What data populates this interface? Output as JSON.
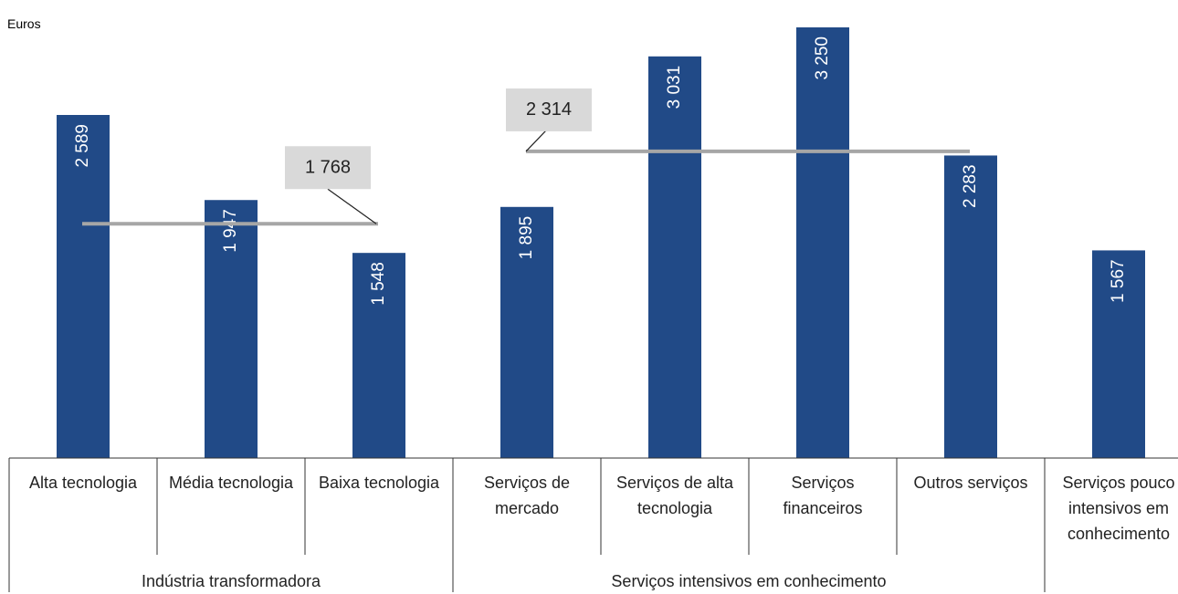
{
  "chart_data": {
    "type": "bar",
    "y_label": "Euros",
    "categories": [
      "Alta tecnologia",
      "Média tecnologia",
      "Baixa tecnologia",
      "Serviços de mercado",
      "Serviços de alta tecnologia",
      "Serviços financeiros",
      "Outros serviços",
      "Serviços pouco intensivos em conhecimento"
    ],
    "values": [
      2589,
      1947,
      1548,
      1895,
      3031,
      3250,
      2283,
      1567
    ],
    "value_labels": [
      "2 589",
      "1 947",
      "1 548",
      "1 895",
      "3 031",
      "3 250",
      "2 283",
      "1 567"
    ],
    "color": "#214a87",
    "ylim": [
      0,
      3250
    ],
    "groups": [
      {
        "name": "Indústria transformadora",
        "span": 3
      },
      {
        "name": "Serviços intensivos em conhecimento",
        "span": 4
      },
      {
        "name": null,
        "span": 1
      }
    ],
    "reference_lines": [
      {
        "value": 1768,
        "label": "1 768",
        "group": 0,
        "color": "#a6a6a6"
      },
      {
        "value": 2314,
        "label": "2 314",
        "group": 1,
        "color": "#a6a6a6"
      }
    ]
  }
}
